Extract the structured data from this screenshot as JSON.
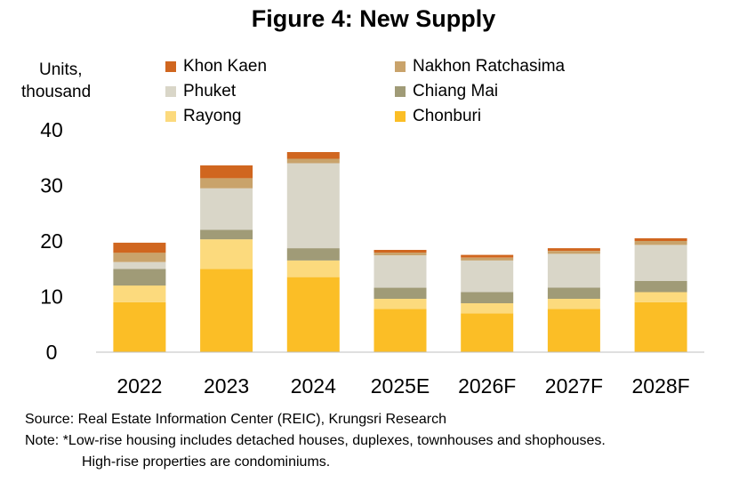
{
  "title": "Figure 4: New Supply",
  "y_axis_label_line1": "Units,",
  "y_axis_label_line2": "thousand",
  "notes": {
    "source": "Source: Real Estate Information Center (REIC), Krungsri Research",
    "note_line1": "Note: *Low-rise housing includes detached houses, duplexes, townhouses and shophouses.",
    "note_line2": "High-rise properties are condominiums."
  },
  "legend": [
    {
      "name": "Khon Kaen",
      "color": "#D0661F"
    },
    {
      "name": "Nakhon Ratchasima",
      "color": "#C9A36B"
    },
    {
      "name": "Phuket",
      "color": "#D9D6C8"
    },
    {
      "name": "Chiang Mai",
      "color": "#A09B77"
    },
    {
      "name": "Rayong",
      "color": "#FCDA7D"
    },
    {
      "name": "Chonburi",
      "color": "#FBBE26"
    }
  ],
  "chart_data": {
    "type": "bar",
    "stacked": true,
    "title": "Figure 4: New Supply",
    "ylabel": "Units, thousand",
    "xlabel": "",
    "ylim": [
      0,
      40
    ],
    "yticks": [
      0,
      10,
      20,
      30,
      40
    ],
    "categories": [
      "2022",
      "2023",
      "2024",
      "2025E",
      "2026F",
      "2027F",
      "2028F"
    ],
    "series": [
      {
        "name": "Chonburi",
        "color": "#FBBE26",
        "values": [
          9.0,
          15.0,
          13.5,
          7.8,
          7.0,
          7.8,
          9.0
        ]
      },
      {
        "name": "Rayong",
        "color": "#FCDA7D",
        "values": [
          3.0,
          5.3,
          3.0,
          1.8,
          1.8,
          1.8,
          1.8
        ]
      },
      {
        "name": "Chiang Mai",
        "color": "#A09B77",
        "values": [
          3.0,
          1.7,
          2.2,
          2.0,
          2.0,
          2.0,
          2.0
        ]
      },
      {
        "name": "Phuket",
        "color": "#D9D6C8",
        "values": [
          1.2,
          7.5,
          15.3,
          5.8,
          5.7,
          6.1,
          6.5
        ]
      },
      {
        "name": "Nakhon Ratchasima",
        "color": "#C9A36B",
        "values": [
          1.7,
          1.8,
          0.8,
          0.5,
          0.5,
          0.5,
          0.7
        ]
      },
      {
        "name": "Khon Kaen",
        "color": "#D0661F",
        "values": [
          1.8,
          2.3,
          1.2,
          0.5,
          0.5,
          0.5,
          0.5
        ]
      }
    ],
    "grid": false,
    "legend_position": "top"
  }
}
